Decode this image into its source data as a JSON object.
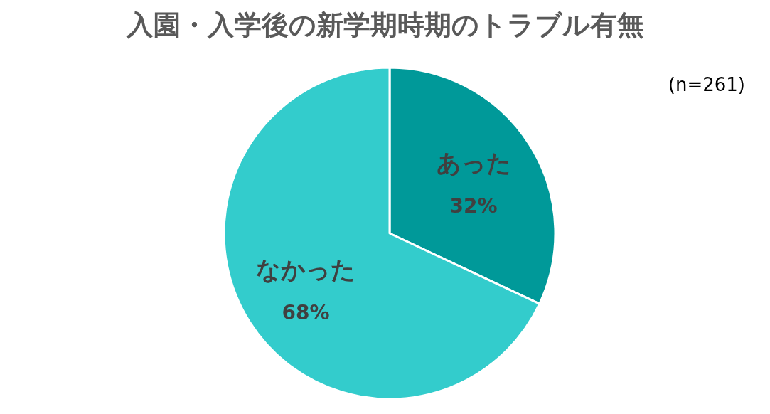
{
  "chart_data": {
    "type": "pie",
    "title": "入園・入学後の新学期時期のトラブル有無",
    "categories": [
      "あった",
      "なかった"
    ],
    "values": [
      32,
      68
    ],
    "colors": [
      "#009999",
      "#33cccc"
    ],
    "value_labels": [
      "32%",
      "68%"
    ],
    "annotations": [
      "(n=261)"
    ]
  }
}
